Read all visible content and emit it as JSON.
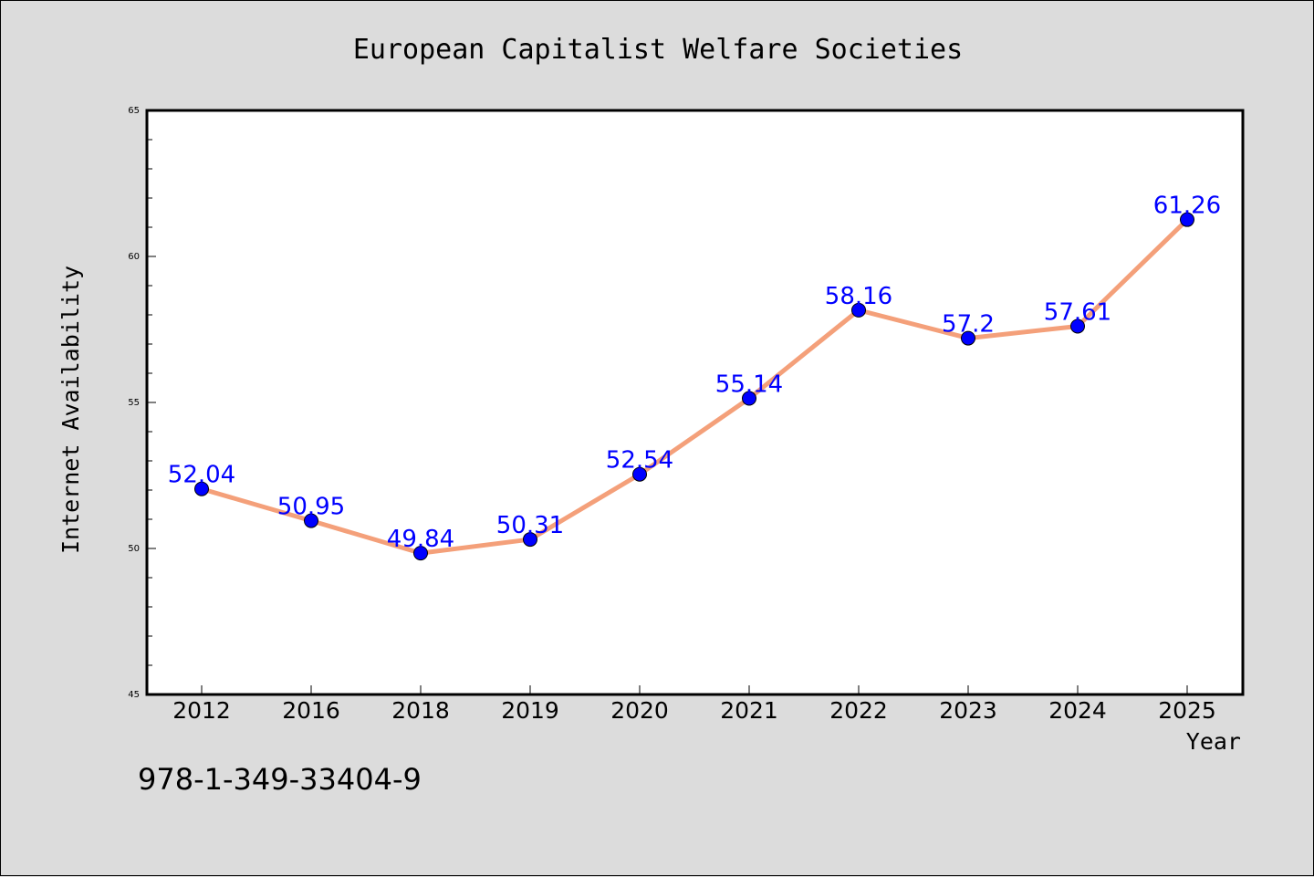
{
  "chart_data": {
    "type": "line",
    "title": "European Capitalist Welfare Societies",
    "xlabel": "Year",
    "ylabel": "Internet Availability",
    "categories": [
      "2012",
      "2016",
      "2018",
      "2019",
      "2020",
      "2021",
      "2022",
      "2023",
      "2024",
      "2025"
    ],
    "series": [
      {
        "values": [
          52.04,
          50.95,
          49.84,
          50.31,
          52.54,
          55.14,
          58.16,
          57.2,
          57.61,
          61.26
        ],
        "data_labels": [
          "52.04",
          "50.95",
          "49.84",
          "50.31",
          "52.54",
          "55.14",
          "58.16",
          "57.2",
          "57.61",
          "61.26"
        ]
      }
    ],
    "ylim": [
      45,
      65
    ],
    "yticks": [
      "45",
      "50",
      "55",
      "60",
      "65"
    ],
    "grid": false,
    "legend": "none",
    "colors": {
      "line": "#f4a07a",
      "marker": "#0000ff",
      "data_label": "#0000ff",
      "background": "#dcdcdc",
      "plot_background": "#ffffff"
    }
  },
  "footer_text": "978-1-349-33404-9"
}
